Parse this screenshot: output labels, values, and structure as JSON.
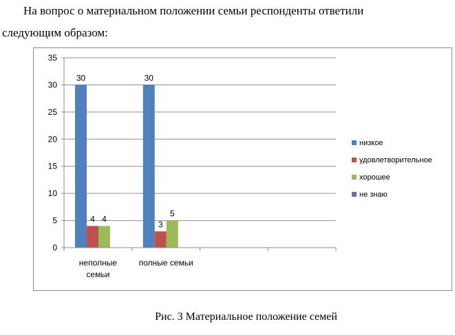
{
  "intro": {
    "line1": "На вопрос о материальном положении семьи респонденты ответили",
    "line2": "следующим образом:"
  },
  "caption": "Рис. 3 Материальное положение семей",
  "chart_data": {
    "type": "bar",
    "categories": [
      [
        "неполные",
        "семьи"
      ],
      [
        "полные семьи"
      ],
      [
        ""
      ],
      [
        ""
      ]
    ],
    "series": [
      {
        "name": "низкое",
        "color": "#4f81bd",
        "values": [
          30,
          30,
          null,
          null
        ]
      },
      {
        "name": "удовлетворительное",
        "color": "#c0504d",
        "values": [
          4,
          3,
          null,
          null
        ]
      },
      {
        "name": "хорошее",
        "color": "#9bbb59",
        "values": [
          4,
          5,
          null,
          null
        ]
      },
      {
        "name": "не знаю",
        "color": "#8064a2",
        "values": [
          null,
          null,
          null,
          null
        ]
      }
    ],
    "yticks": [
      0,
      5,
      10,
      15,
      20,
      25,
      30,
      35
    ],
    "ylim": [
      0,
      35
    ],
    "grid": true,
    "legend": "right",
    "data_labels": true
  }
}
